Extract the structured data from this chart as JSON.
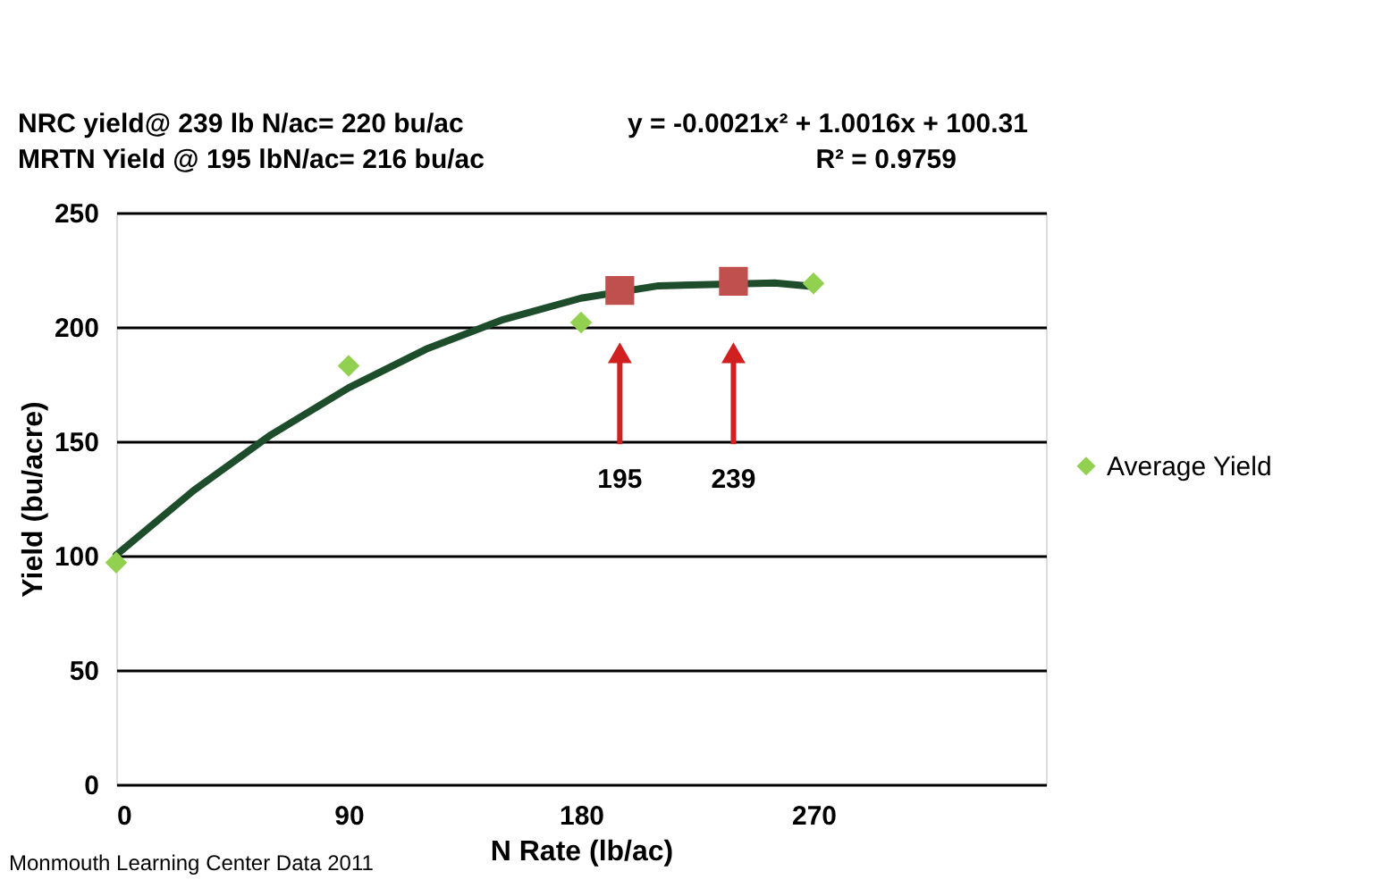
{
  "chart_data": {
    "type": "scatter",
    "xlabel": "N Rate (lb/ac)",
    "ylabel": "Yield (bu/acre)",
    "xlim": [
      0,
      360
    ],
    "xticks": [
      0,
      90,
      180,
      270
    ],
    "ylim": [
      0,
      250
    ],
    "yticks": [
      0,
      50,
      100,
      150,
      200,
      250
    ],
    "grid": "y",
    "legend": "right",
    "series": [
      {
        "type": "line",
        "color": "#1e4d2b",
        "marker": "none",
        "line_style": "solid",
        "x": [
          0,
          30,
          60,
          90,
          120,
          150,
          180,
          210,
          255,
          270
        ],
        "values": [
          100.3,
          128.5,
          152.9,
          173.4,
          190.3,
          203.3,
          212.6,
          218.0,
          219.2,
          217.7
        ]
      },
      {
        "name": "Average Yield",
        "color": "#92d050",
        "marker": "diamond",
        "x": [
          0,
          90,
          180,
          270
        ],
        "values": [
          97,
          183,
          202,
          219
        ]
      },
      {
        "color": "#c0504d",
        "marker": "square",
        "x": [
          195,
          239
        ],
        "values": [
          216,
          220
        ]
      }
    ],
    "annotations": [
      "NRC yield@ 239 lb N/ac= 220 bu/ac",
      "MRTN Yield @ 195 lbN/ac=  216 bu/ac",
      "y = -0.0021x² + 1.0016x + 100.31",
      "R² = 0.9759",
      "Monmouth Learning Center Data 2011",
      "195",
      "239"
    ]
  }
}
